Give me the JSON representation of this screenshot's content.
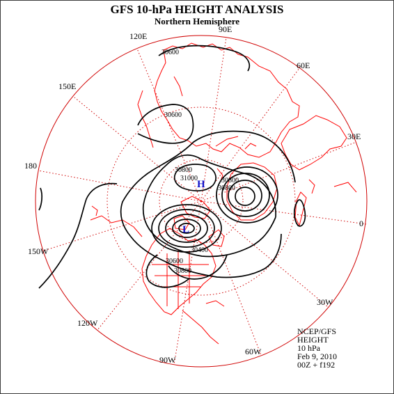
{
  "title": "GFS 10-hPa HEIGHT ANALYSIS",
  "subtitle": "Northern Hemisphere",
  "longitude_labels": [
    "90E",
    "120E",
    "60E",
    "150E",
    "30E",
    "180",
    "0",
    "150W",
    "30W",
    "120W",
    "60W",
    "90W"
  ],
  "contour_labels": [
    "30600",
    "30600",
    "30800",
    "31000",
    "30800",
    "30800",
    "30400",
    "30600",
    "30800"
  ],
  "centers": {
    "high": {
      "symbol": "H",
      "color": "#1010c8"
    },
    "low": {
      "symbol": "L",
      "color": "#1010c8"
    }
  },
  "info": {
    "source": "NCEP/GFS",
    "field": "HEIGHT",
    "level": "10 hPa",
    "date": "Feb 9, 2010",
    "time": "00Z + f192"
  },
  "colors": {
    "coastline": "#ff0000",
    "grid": "#d00000",
    "contour": "#000000",
    "center_marker": "#1010c8"
  }
}
